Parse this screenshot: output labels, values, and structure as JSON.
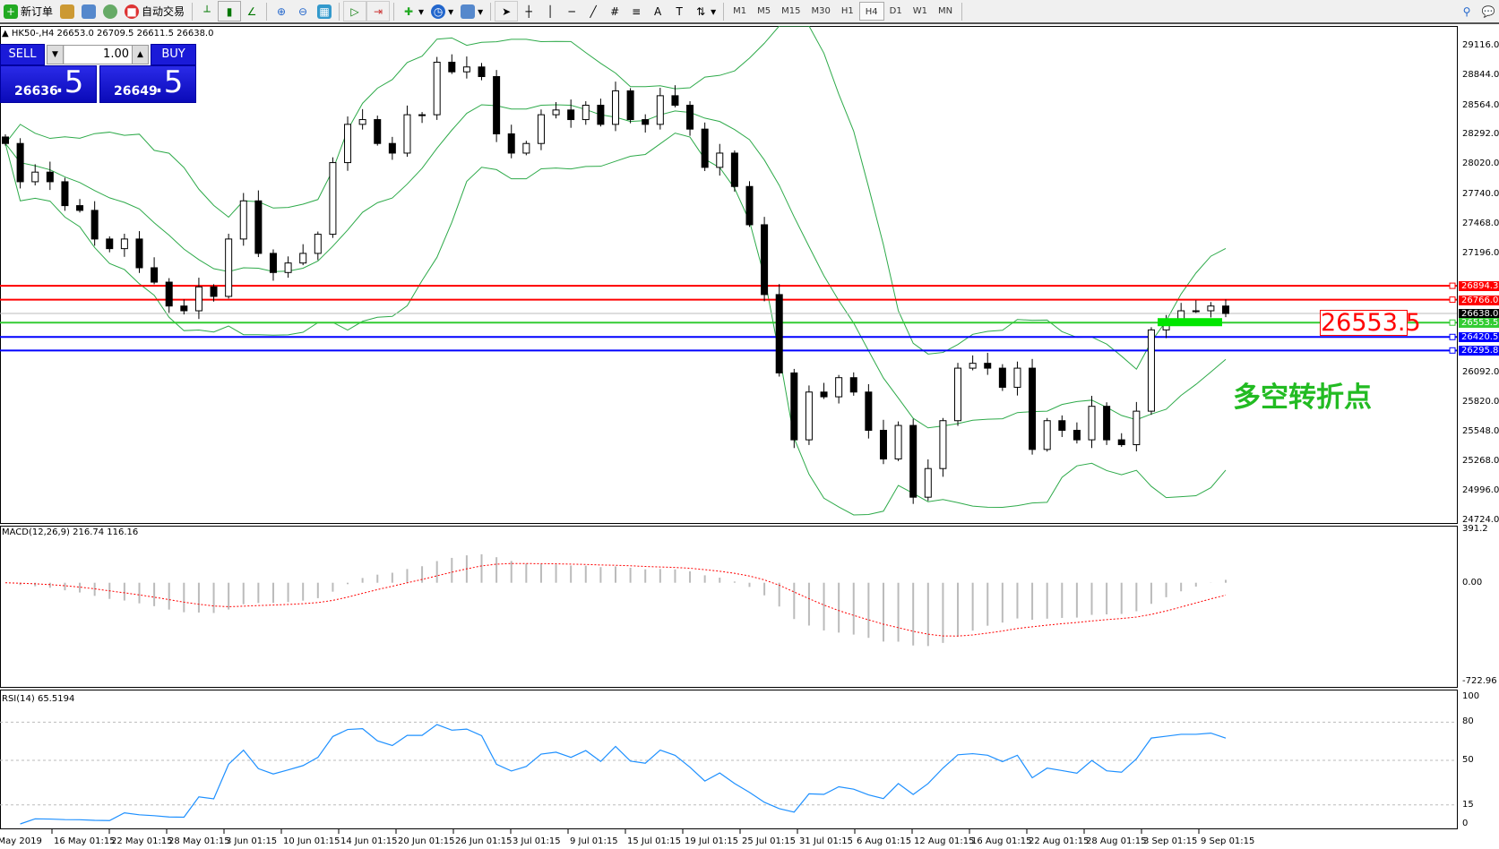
{
  "toolbar": {
    "new_order": "新订单",
    "auto_trading": "自动交易",
    "timeframes": [
      "M1",
      "M5",
      "M15",
      "M30",
      "H1",
      "H4",
      "D1",
      "W1",
      "MN"
    ],
    "active_timeframe": "H4"
  },
  "chart": {
    "header": "HK50-,H4  26653.0 26709.5 26611.5 26638.0",
    "symbol": "HK50-",
    "timeframe": "H4"
  },
  "trade_panel": {
    "sell_label": "SELL",
    "buy_label": "BUY",
    "lot": "1.00",
    "sell_main": "26636",
    "sell_frac": ".5",
    "buy_main": "26649",
    "buy_frac": ".5"
  },
  "annotations": {
    "price_box": "26553.5",
    "chinese_text": "多空转折点",
    "text_color": "#22bb22"
  },
  "price_axis": [
    "29116.0",
    "28844.0",
    "28564.0",
    "28292.0",
    "28020.0",
    "27740.0",
    "27468.0",
    "27196.0",
    "26092.0",
    "25820.0",
    "25548.0",
    "25268.0",
    "24996.0",
    "24724.0"
  ],
  "hlines": [
    {
      "value": 26894.3,
      "label": "26894.3",
      "color": "#ff0000"
    },
    {
      "value": 26766.0,
      "label": "26766.0",
      "color": "#ff0000"
    },
    {
      "value": 26638.0,
      "label": "26638.0",
      "color": "#000000"
    },
    {
      "value": 26553.5,
      "label": "26553.5",
      "color": "#33cc33"
    },
    {
      "value": 26420.5,
      "label": "26420.5",
      "color": "#0000ff"
    },
    {
      "value": 26295.8,
      "label": "26295.8",
      "color": "#0000ff"
    }
  ],
  "macd": {
    "label": "MACD(12,26,9) 216.74 116.16",
    "axis": [
      "391.2",
      "0.00",
      "-722.96"
    ]
  },
  "rsi": {
    "label": "RSI(14) 65.5194",
    "axis": [
      "100",
      "80",
      "50",
      "15",
      "0"
    ]
  },
  "time_axis": [
    "9 May 2019",
    "16 May 01:15",
    "22 May 01:15",
    "28 May 01:15",
    "3 Jun 01:15",
    "10 Jun 01:15",
    "14 Jun 01:15",
    "20 Jun 01:15",
    "26 Jun 01:15",
    "3 Jul 01:15",
    "9 Jul 01:15",
    "15 Jul 01:15",
    "19 Jul 01:15",
    "25 Jul 01:15",
    "31 Jul 01:15",
    "6 Aug 01:15",
    "12 Aug 01:15",
    "16 Aug 01:15",
    "22 Aug 01:15",
    "28 Aug 01:15",
    "3 Sep 01:15",
    "9 Sep 01:15"
  ],
  "chart_data": {
    "type": "candlestick",
    "price_range": [
      24724,
      29116
    ],
    "macd_range": [
      -722.96,
      391.2
    ],
    "rsi_levels": [
      80,
      50,
      15
    ],
    "closes": [
      28211,
      27857,
      27946,
      27857,
      27636,
      27592,
      27327,
      27238,
      27327,
      27061,
      26928,
      26707,
      26663,
      26884,
      26796,
      27327,
      27680,
      27194,
      27017,
      27105,
      27194,
      27371,
      28034,
      28388,
      28432,
      28211,
      28122,
      28477,
      28477,
      28963,
      28874,
      28919,
      28830,
      28300,
      28122,
      28211,
      28477,
      28521,
      28432,
      28565,
      28388,
      28698,
      28432,
      28388,
      28653,
      28565,
      28344,
      27990,
      28122,
      27813,
      27459,
      26813,
      26088,
      25469,
      25911,
      25867,
      26044,
      25911,
      25557,
      25292,
      25602,
      24938,
      25203,
      25646,
      26132,
      26177,
      26132,
      25955,
      26132,
      25380,
      25646,
      25557,
      25469,
      25779,
      25469,
      25424,
      25734,
      26486,
      26575,
      26663,
      26663,
      26707,
      26638
    ]
  }
}
